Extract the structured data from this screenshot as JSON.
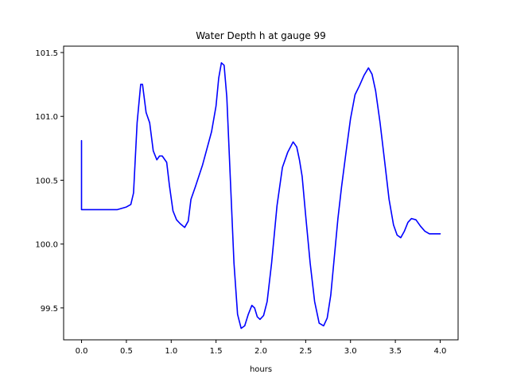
{
  "chart_data": {
    "type": "line",
    "title": "Water Depth h at gauge 99",
    "xlabel": "hours",
    "ylabel": "",
    "xlim": [
      -0.2,
      4.2
    ],
    "ylim": [
      99.25,
      101.55
    ],
    "xticks": [
      0.0,
      0.5,
      1.0,
      1.5,
      2.0,
      2.5,
      3.0,
      3.5,
      4.0
    ],
    "xtick_labels": [
      "0.0",
      "0.5",
      "1.0",
      "1.5",
      "2.0",
      "2.5",
      "3.0",
      "3.5",
      "4.0"
    ],
    "yticks": [
      99.5,
      100.0,
      100.5,
      101.0,
      101.5
    ],
    "ytick_labels": [
      "99.5",
      "100.0",
      "100.5",
      "101.0",
      "101.5"
    ],
    "grid": false,
    "legend": "none",
    "series": [
      {
        "color": "#0000ff",
        "x": [
          0.0,
          0.0,
          0.0,
          0.1,
          0.2,
          0.3,
          0.4,
          0.5,
          0.55,
          0.58,
          0.62,
          0.66,
          0.68,
          0.72,
          0.76,
          0.8,
          0.84,
          0.87,
          0.9,
          0.95,
          0.98,
          1.02,
          1.06,
          1.1,
          1.15,
          1.19,
          1.22,
          1.27,
          1.35,
          1.45,
          1.5,
          1.53,
          1.56,
          1.59,
          1.62,
          1.66,
          1.7,
          1.74,
          1.78,
          1.82,
          1.86,
          1.9,
          1.93,
          1.96,
          1.99,
          2.03,
          2.07,
          2.12,
          2.18,
          2.24,
          2.3,
          2.36,
          2.4,
          2.43,
          2.46,
          2.5,
          2.55,
          2.6,
          2.65,
          2.7,
          2.74,
          2.78,
          2.82,
          2.86,
          2.9,
          2.95,
          3.0,
          3.05,
          3.1,
          3.15,
          3.2,
          3.24,
          3.28,
          3.33,
          3.38,
          3.43,
          3.48,
          3.52,
          3.56,
          3.6,
          3.64,
          3.68,
          3.73,
          3.78,
          3.83,
          3.88,
          3.93,
          3.98,
          4.0
        ],
        "y": [
          100.81,
          100.27,
          100.27,
          100.27,
          100.27,
          100.27,
          100.27,
          100.29,
          100.31,
          100.4,
          100.95,
          101.25,
          101.25,
          101.03,
          100.95,
          100.73,
          100.66,
          100.69,
          100.69,
          100.64,
          100.46,
          100.26,
          100.19,
          100.16,
          100.13,
          100.18,
          100.35,
          100.45,
          100.62,
          100.88,
          101.08,
          101.3,
          101.42,
          101.4,
          101.15,
          100.5,
          99.85,
          99.45,
          99.34,
          99.36,
          99.45,
          99.52,
          99.5,
          99.43,
          99.41,
          99.44,
          99.55,
          99.85,
          100.3,
          100.6,
          100.72,
          100.8,
          100.76,
          100.66,
          100.53,
          100.22,
          99.85,
          99.55,
          99.38,
          99.36,
          99.42,
          99.6,
          99.9,
          100.2,
          100.45,
          100.72,
          100.98,
          101.17,
          101.24,
          101.32,
          101.38,
          101.33,
          101.2,
          100.95,
          100.65,
          100.35,
          100.15,
          100.07,
          100.05,
          100.1,
          100.17,
          100.2,
          100.19,
          100.14,
          100.1,
          100.08,
          100.08,
          100.08,
          100.08
        ]
      }
    ]
  }
}
